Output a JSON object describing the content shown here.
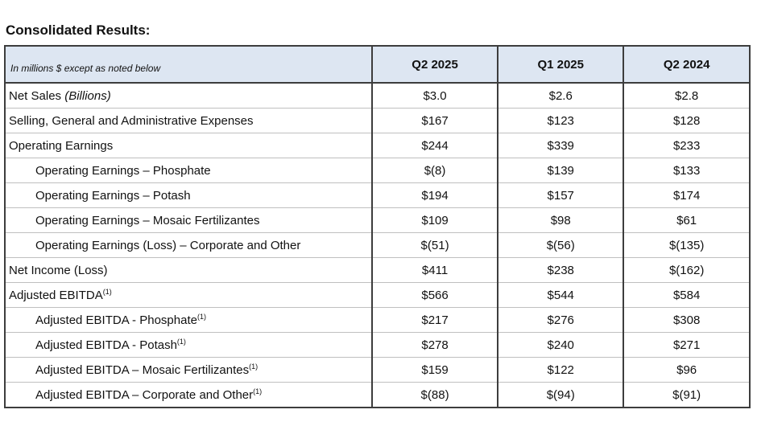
{
  "title": "Consolidated Results:",
  "table": {
    "header": {
      "label": "In millions $ except as noted below",
      "columns": [
        "Q2 2025",
        "Q1 2025",
        "Q2 2024"
      ]
    },
    "rows": [
      {
        "label": "Net Sales ",
        "note": "(Billions)",
        "footnote": "",
        "indent": false,
        "values": [
          "$3.0",
          "$2.6",
          "$2.8"
        ]
      },
      {
        "label": "Selling, General and Administrative Expenses",
        "note": "",
        "footnote": "",
        "indent": false,
        "values": [
          "$167",
          "$123",
          "$128"
        ]
      },
      {
        "label": "Operating Earnings",
        "note": "",
        "footnote": "",
        "indent": false,
        "values": [
          "$244",
          "$339",
          "$233"
        ]
      },
      {
        "label": "Operating Earnings – Phosphate",
        "note": "",
        "footnote": "",
        "indent": true,
        "values": [
          "$(8)",
          "$139",
          "$133"
        ]
      },
      {
        "label": "Operating Earnings – Potash",
        "note": "",
        "footnote": "",
        "indent": true,
        "values": [
          "$194",
          "$157",
          "$174"
        ]
      },
      {
        "label": "Operating Earnings – Mosaic Fertilizantes",
        "note": "",
        "footnote": "",
        "indent": true,
        "values": [
          "$109",
          "$98",
          "$61"
        ]
      },
      {
        "label": "Operating Earnings (Loss) – Corporate and Other",
        "note": "",
        "footnote": "",
        "indent": true,
        "values": [
          "$(51)",
          "$(56)",
          "$(135)"
        ]
      },
      {
        "label": "Net Income (Loss)",
        "note": "",
        "footnote": "",
        "indent": false,
        "values": [
          "$411",
          "$238",
          "$(162)"
        ]
      },
      {
        "label": "Adjusted EBITDA",
        "note": "",
        "footnote": "(1)",
        "indent": false,
        "values": [
          "$566",
          "$544",
          "$584"
        ]
      },
      {
        "label": "Adjusted EBITDA - Phosphate",
        "note": "",
        "footnote": "(1)",
        "indent": true,
        "values": [
          "$217",
          "$276",
          "$308"
        ]
      },
      {
        "label": "Adjusted EBITDA - Potash",
        "note": "",
        "footnote": "(1)",
        "indent": true,
        "values": [
          "$278",
          "$240",
          "$271"
        ]
      },
      {
        "label": "Adjusted EBITDA – Mosaic Fertilizantes",
        "note": "",
        "footnote": "(1)",
        "indent": true,
        "values": [
          "$159",
          "$122",
          "$96"
        ]
      },
      {
        "label": "Adjusted EBITDA – Corporate and Other",
        "note": "",
        "footnote": "(1)",
        "indent": true,
        "values": [
          "$(88)",
          "$(94)",
          "$(91)"
        ]
      }
    ]
  }
}
